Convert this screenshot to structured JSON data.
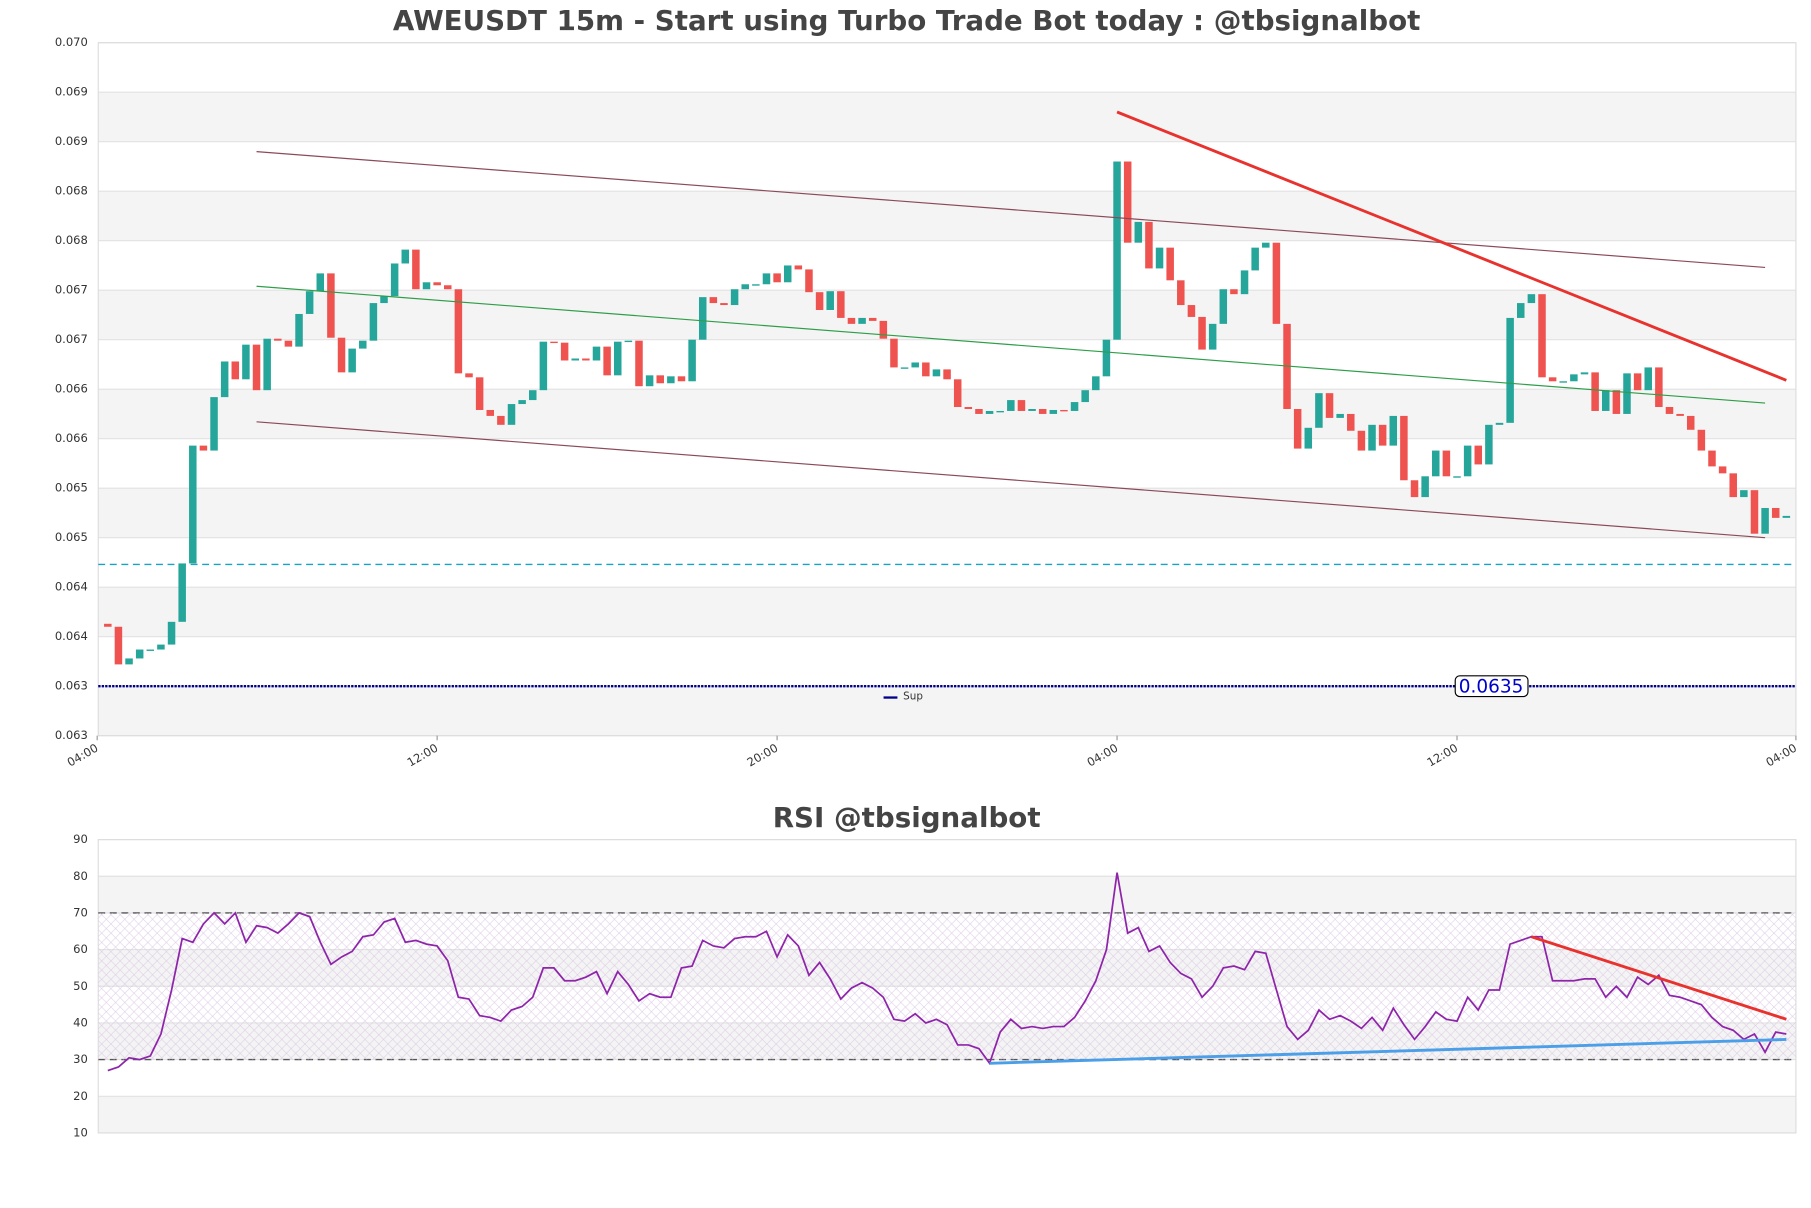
{
  "chart_data": [
    {
      "type": "candlestick",
      "title": "AWEUSDT 15m - Start using Turbo Trade Bot today : @tbsignalbot",
      "xlim": [
        -0.9,
        158.9
      ],
      "xticks": [
        {
          "value": -1,
          "label": "04:00"
        },
        {
          "value": 31,
          "label": "12:00"
        },
        {
          "value": 63,
          "label": "20:00"
        },
        {
          "value": 95,
          "label": "04:00"
        },
        {
          "value": 127,
          "label": "12:00"
        },
        {
          "value": 159,
          "label": "04:00"
        }
      ],
      "ylim": [
        0.063,
        0.07
      ],
      "yticks": [
        {
          "value": 0.063,
          "label": "0.063"
        },
        {
          "value": 0.0635,
          "label": "0.063"
        },
        {
          "value": 0.064,
          "label": "0.064"
        },
        {
          "value": 0.0645,
          "label": "0.064"
        },
        {
          "value": 0.065,
          "label": "0.065"
        },
        {
          "value": 0.0655,
          "label": "0.065"
        },
        {
          "value": 0.066,
          "label": "0.066"
        },
        {
          "value": 0.0665,
          "label": "0.066"
        },
        {
          "value": 0.067,
          "label": "0.067"
        },
        {
          "value": 0.0675,
          "label": "0.067"
        },
        {
          "value": 0.068,
          "label": "0.068"
        },
        {
          "value": 0.0685,
          "label": "0.068"
        },
        {
          "value": 0.069,
          "label": "0.069"
        },
        {
          "value": 0.0695,
          "label": "0.069"
        },
        {
          "value": 0.07,
          "label": "0.070"
        }
      ],
      "up_color": "#26a69a",
      "down_color": "#ef5350",
      "open": [
        0.06413,
        0.0641,
        0.06372,
        0.06378,
        0.06387,
        0.06387,
        0.06392,
        0.06415,
        0.06474,
        0.06593,
        0.06588,
        0.06642,
        0.06678,
        0.0666,
        0.06695,
        0.06649,
        0.06701,
        0.06699,
        0.06693,
        0.06726,
        0.06749,
        0.06767,
        0.06702,
        0.06667,
        0.06691,
        0.06699,
        0.06737,
        0.06744,
        0.06777,
        0.06791,
        0.06751,
        0.06758,
        0.06755,
        0.06751,
        0.06666,
        0.06662,
        0.06629,
        0.06623,
        0.06614,
        0.06635,
        0.06639,
        0.06649,
        0.06698,
        0.06697,
        0.06679,
        0.06681,
        0.06679,
        0.06693,
        0.06664,
        0.06698,
        0.06699,
        0.06653,
        0.06664,
        0.06656,
        0.06663,
        0.06658,
        0.067,
        0.06743,
        0.06737,
        0.06735,
        0.06751,
        0.06756,
        0.06756,
        0.06767,
        0.06758,
        0.06775,
        0.06771,
        0.06748,
        0.0673,
        0.06749,
        0.06722,
        0.06716,
        0.06722,
        0.06719,
        0.06701,
        0.06672,
        0.06672,
        0.06677,
        0.06663,
        0.0667,
        0.0666,
        0.06632,
        0.0663,
        0.06625,
        0.06628,
        0.06628,
        0.06639,
        0.06628,
        0.0663,
        0.06625,
        0.06629,
        0.06628,
        0.06637,
        0.06649,
        0.06663,
        0.067,
        0.0688,
        0.06798,
        0.06819,
        0.06772,
        0.06793,
        0.0676,
        0.06735,
        0.06723,
        0.0669,
        0.06716,
        0.06751,
        0.06746,
        0.0677,
        0.06793,
        0.06798,
        0.06716,
        0.0663,
        0.0659,
        0.06611,
        0.06646,
        0.06621,
        0.06625,
        0.06608,
        0.06588,
        0.06614,
        0.06593,
        0.06623,
        0.06558,
        0.06541,
        0.06562,
        0.06588,
        0.06562,
        0.06562,
        0.06593,
        0.06574,
        0.06614,
        0.06616,
        0.06722,
        0.06737,
        0.06746,
        0.06662,
        0.06658,
        0.06658,
        0.06665,
        0.06667,
        0.06628,
        0.06649,
        0.06625,
        0.06666,
        0.06649,
        0.06672,
        0.06632,
        0.06625,
        0.06623,
        0.06609,
        0.06588,
        0.06572,
        0.06565,
        0.06541,
        0.06548,
        0.06504,
        0.0653,
        0.0652
      ],
      "close": [
        0.0641,
        0.06372,
        0.06378,
        0.06387,
        0.06387,
        0.06392,
        0.06415,
        0.06474,
        0.06593,
        0.06588,
        0.06642,
        0.06678,
        0.0666,
        0.06695,
        0.06649,
        0.06701,
        0.06699,
        0.06693,
        0.06726,
        0.06749,
        0.06767,
        0.06702,
        0.06667,
        0.06691,
        0.06699,
        0.06737,
        0.06744,
        0.06777,
        0.06791,
        0.06751,
        0.06758,
        0.06755,
        0.06751,
        0.06666,
        0.06662,
        0.06629,
        0.06623,
        0.06614,
        0.06635,
        0.06639,
        0.06649,
        0.06698,
        0.06697,
        0.06679,
        0.06681,
        0.06679,
        0.06693,
        0.06664,
        0.06698,
        0.06699,
        0.06653,
        0.06664,
        0.06656,
        0.06663,
        0.06658,
        0.067,
        0.06743,
        0.06737,
        0.06735,
        0.06751,
        0.06756,
        0.06756,
        0.06767,
        0.06758,
        0.06775,
        0.06771,
        0.06748,
        0.0673,
        0.06749,
        0.06722,
        0.06716,
        0.06722,
        0.06719,
        0.06701,
        0.06672,
        0.06672,
        0.06677,
        0.06663,
        0.0667,
        0.0666,
        0.06632,
        0.0663,
        0.06625,
        0.06628,
        0.06628,
        0.06639,
        0.06628,
        0.0663,
        0.06625,
        0.06629,
        0.06628,
        0.06637,
        0.06649,
        0.06663,
        0.067,
        0.0688,
        0.06798,
        0.06819,
        0.06772,
        0.06793,
        0.0676,
        0.06735,
        0.06723,
        0.0669,
        0.06716,
        0.06751,
        0.06746,
        0.0677,
        0.06793,
        0.06798,
        0.06716,
        0.0663,
        0.0659,
        0.06611,
        0.06646,
        0.06621,
        0.06625,
        0.06608,
        0.06588,
        0.06614,
        0.06593,
        0.06623,
        0.06558,
        0.06541,
        0.06562,
        0.06588,
        0.06562,
        0.06562,
        0.06593,
        0.06574,
        0.06614,
        0.06616,
        0.06722,
        0.06737,
        0.06746,
        0.06662,
        0.06658,
        0.06658,
        0.06665,
        0.06667,
        0.06628,
        0.06649,
        0.06625,
        0.06666,
        0.06649,
        0.06672,
        0.06632,
        0.06625,
        0.06623,
        0.06609,
        0.06588,
        0.06572,
        0.06565,
        0.06541,
        0.06548,
        0.06504,
        0.0653,
        0.0652,
        0.06522
      ],
      "support": {
        "name": "Sup",
        "value": 0.0635,
        "label": "0.0635",
        "color": "#00008b"
      },
      "levels": [
        {
          "value": 0.06473,
          "color": "#17a2c8"
        }
      ],
      "trendlines": [
        {
          "x": [
            14,
            156
          ],
          "values": [
            0.0689,
            0.06773
          ],
          "color": "#8b4a5a",
          "width": 1
        },
        {
          "x": [
            14,
            156
          ],
          "values": [
            0.06617,
            0.065
          ],
          "color": "#8b4a5a",
          "width": 1
        },
        {
          "x": [
            14,
            156
          ],
          "values": [
            0.06754,
            0.06636
          ],
          "color": "#2e9e48",
          "width": 1
        },
        {
          "x": [
            95,
            158
          ],
          "values": [
            0.0693,
            0.06659
          ],
          "color": "#e8322e",
          "width": 2.5
        }
      ]
    },
    {
      "type": "line",
      "title": "RSI @tbsignalbot",
      "xlim": [
        -0.9,
        158.9
      ],
      "ylim": [
        10,
        90
      ],
      "yticks": [
        10,
        20,
        30,
        40,
        50,
        60,
        70,
        80,
        90
      ],
      "color": "#8e24aa",
      "values": [
        27,
        28,
        30.5,
        30,
        31,
        37,
        49,
        63,
        62,
        67,
        70,
        67,
        70,
        62,
        66.5,
        66,
        64.5,
        67,
        70,
        69,
        62,
        56,
        58,
        59.5,
        63.5,
        64,
        67.5,
        68.5,
        62,
        62.5,
        61.5,
        61,
        57,
        47,
        46.5,
        42,
        41.5,
        40.5,
        43.5,
        44.5,
        47,
        55,
        55,
        51.5,
        51.5,
        52.5,
        54,
        48,
        54,
        50.5,
        46,
        48,
        47,
        47,
        55,
        55.5,
        62.5,
        61,
        60.5,
        63,
        63.5,
        63.5,
        65,
        58,
        64,
        61,
        53,
        56.5,
        52,
        46.5,
        49.5,
        51,
        49.5,
        47,
        41,
        40.5,
        42.5,
        40,
        41,
        39.5,
        34,
        34,
        33,
        29,
        37.5,
        41,
        38.5,
        39,
        38.5,
        39,
        39,
        41.5,
        46,
        51.5,
        60,
        81,
        64.5,
        66,
        59.5,
        61,
        56.5,
        53.5,
        52,
        47,
        50,
        55,
        55.5,
        54.5,
        59.5,
        59,
        49,
        39,
        35.5,
        38,
        43.5,
        41,
        42,
        40.5,
        38.5,
        41.5,
        38,
        44,
        39.5,
        35.5,
        39,
        43,
        41,
        40.5,
        47,
        43.5,
        49,
        49,
        61.5,
        62.5,
        63.5,
        63.5,
        51.5,
        51.5,
        51.5,
        52,
        52,
        47,
        50,
        47,
        52.5,
        50.5,
        53,
        47.5,
        47,
        46,
        45,
        41.5,
        39,
        38,
        35.5,
        37,
        32,
        37.5,
        37
      ],
      "levels": [
        {
          "value": 70,
          "color": "#555555"
        },
        {
          "value": 30,
          "color": "#555555"
        }
      ],
      "trendlines": [
        {
          "x": [
            134,
            158
          ],
          "values": [
            63.5,
            41
          ],
          "color": "#e8322e",
          "width": 2.5
        },
        {
          "x": [
            83,
            158
          ],
          "values": [
            29,
            35.5
          ],
          "color": "#4a9fe8",
          "width": 2.5
        }
      ]
    }
  ]
}
